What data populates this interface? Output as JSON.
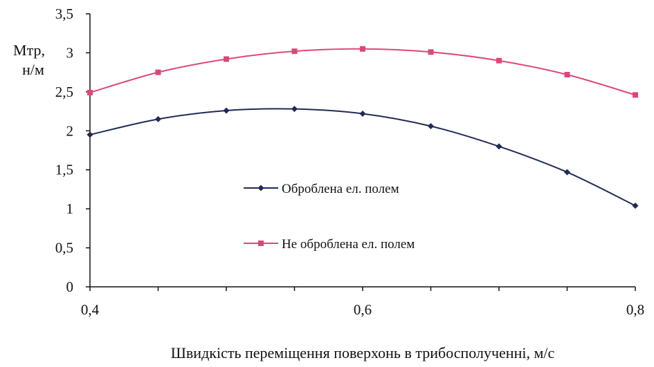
{
  "chart_data": {
    "type": "line",
    "title": "",
    "ylabel_line1": "Мтр,",
    "ylabel_line2": "н/м",
    "xlabel": "Швидкість переміщення поверхонь в трибосполученні, м/с",
    "xlim": [
      0.4,
      0.8
    ],
    "ylim": [
      0,
      3.5
    ],
    "x_ticks": [
      "0,4",
      "0,6",
      "0,8"
    ],
    "y_ticks": [
      "0",
      "0,5",
      "1",
      "1,5",
      "2",
      "2,5",
      "3",
      "3,5"
    ],
    "grid": false,
    "legend_position": "center",
    "x": [
      0.4,
      0.45,
      0.5,
      0.55,
      0.6,
      0.65,
      0.7,
      0.75,
      0.8
    ],
    "series": [
      {
        "name": "Оброблена ел. полем",
        "color": "#1f2a55",
        "marker": "diamond",
        "values": [
          1.95,
          2.15,
          2.26,
          2.28,
          2.22,
          2.06,
          1.8,
          1.47,
          1.04
        ]
      },
      {
        "name": "Не оброблена ел. полем",
        "color": "#e0457a",
        "marker": "square",
        "values": [
          2.49,
          2.75,
          2.92,
          3.02,
          3.05,
          3.01,
          2.9,
          2.72,
          2.46
        ]
      }
    ]
  }
}
